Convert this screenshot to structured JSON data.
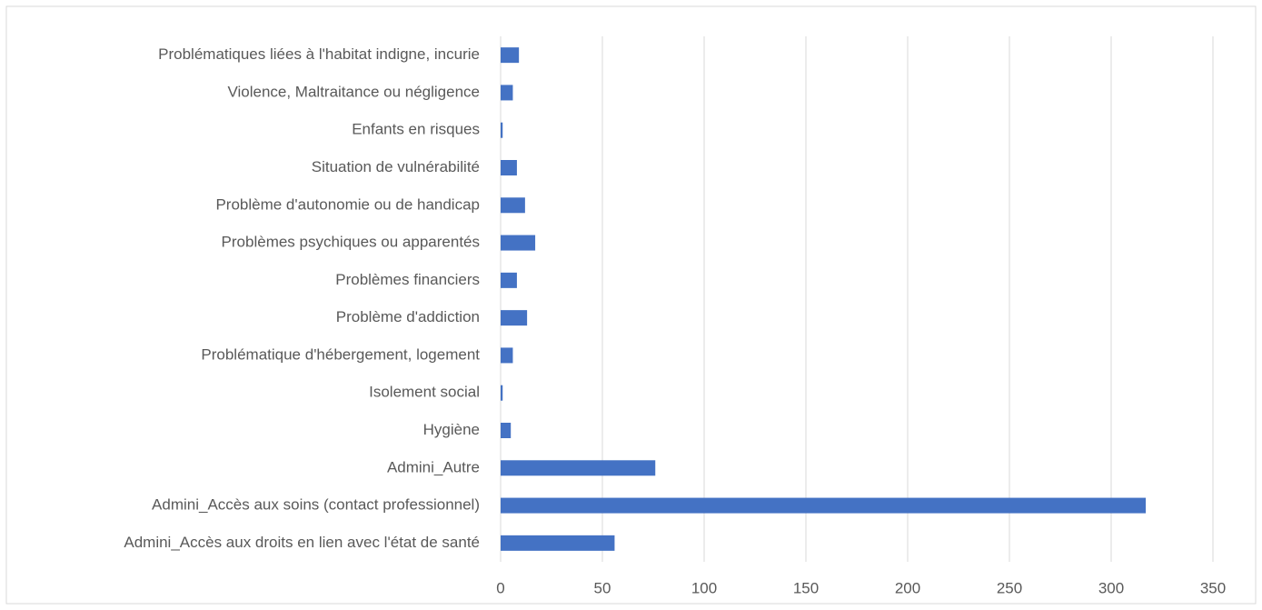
{
  "chart_data": {
    "type": "barh",
    "categories": [
      "Problématiques liées à l'habitat indigne, incurie",
      "Violence, Maltraitance ou négligence ",
      "Enfants en risques",
      "Situation de vulnérabilité",
      "Problème d'autonomie ou de handicap",
      "Problèmes psychiques ou apparentés",
      "Problèmes financiers",
      "Problème d'addiction",
      "Problématique d'hébergement, logement",
      "Isolement social",
      "Hygiène",
      "Admini_Autre",
      "Admini_Accès aux soins (contact professionnel)",
      "Admini_Accès aux droits en lien avec l'état de santé"
    ],
    "values": [
      9,
      6,
      1,
      8,
      12,
      17,
      8,
      13,
      6,
      1,
      5,
      76,
      317,
      56
    ],
    "color": "#4472c4",
    "xlim": [
      0,
      350
    ],
    "xticks": [
      0,
      50,
      100,
      150,
      200,
      250,
      300,
      350
    ],
    "grid": true
  }
}
